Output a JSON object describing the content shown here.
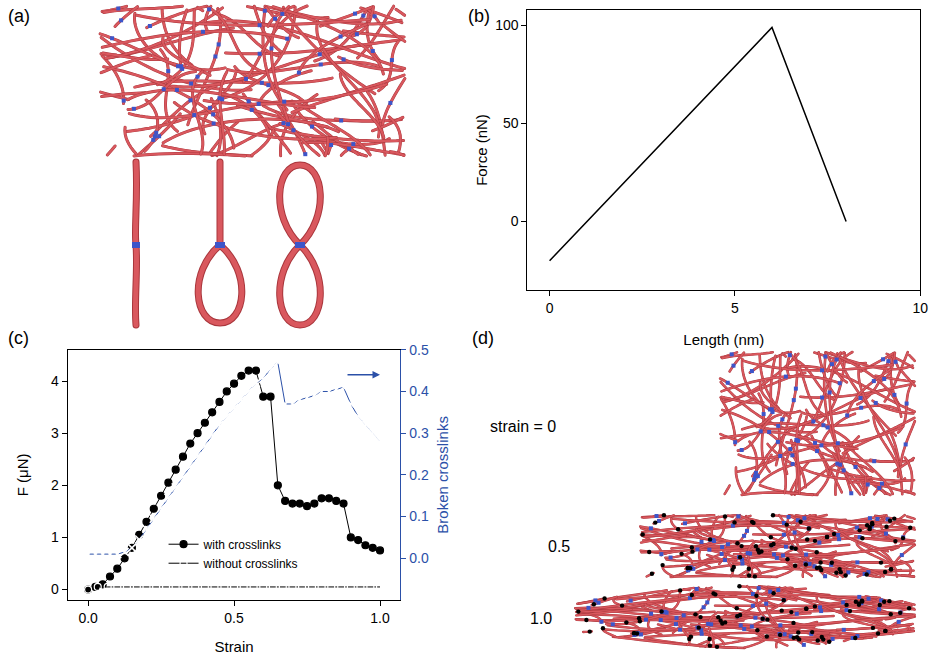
{
  "figure": {
    "panels": [
      {
        "label": "(a)"
      },
      {
        "label": "(b)"
      },
      {
        "label": "(c)"
      },
      {
        "label": "(d)",
        "strain_labels": [
          "strain = 0",
          "0.5",
          "1.0"
        ]
      }
    ]
  },
  "chart_data": [
    {
      "type": "line",
      "x": [
        0,
        6,
        8
      ],
      "values": [
        -20,
        99,
        0
      ],
      "color": "#000000",
      "x_label": "Length (nm)",
      "y_label": "Force (nN)",
      "xlim": [
        -0.6,
        10
      ],
      "xticks": [
        0,
        5,
        10
      ],
      "ylim": [
        -35,
        108
      ],
      "yticks": [
        0,
        50,
        100
      ],
      "grid": false
    },
    {
      "type": "line",
      "x_label": "Strain",
      "y_label": "F (μN)",
      "y2_label": "Broken crosslinks",
      "xlim": [
        -0.07,
        1.07
      ],
      "xticks": [
        {
          "value": 0,
          "label": "0.0"
        },
        0.5,
        {
          "value": 1,
          "label": "1.0"
        }
      ],
      "ylim": [
        -0.2,
        4.6
      ],
      "yticks": [
        0,
        1,
        2,
        3,
        4
      ],
      "y2lim": [
        -0.1,
        0.5
      ],
      "y2ticks": [
        {
          "value": 0,
          "label": "0.0"
        },
        0.1,
        0.2,
        0.3,
        0.4,
        0.5
      ],
      "grid": false,
      "legend": "lower center",
      "series": [
        {
          "name": "with crosslinks",
          "color": "#000000",
          "marker": "circle",
          "line_style": "solid",
          "x": [
            0,
            0.025,
            0.05,
            0.075,
            0.1,
            0.125,
            0.15,
            0.175,
            0.2,
            0.225,
            0.25,
            0.275,
            0.3,
            0.325,
            0.35,
            0.375,
            0.4,
            0.425,
            0.45,
            0.475,
            0.5,
            0.525,
            0.55,
            0.575,
            0.6,
            0.625,
            0.65,
            0.675,
            0.7,
            0.725,
            0.75,
            0.775,
            0.8,
            0.825,
            0.85,
            0.875,
            0.9,
            0.925,
            0.95,
            0.975,
            1
          ],
          "values": [
            0,
            0.05,
            0.1,
            0.25,
            0.4,
            0.6,
            0.8,
            1.05,
            1.3,
            1.55,
            1.8,
            2.05,
            2.3,
            2.55,
            2.8,
            3.0,
            3.2,
            3.4,
            3.6,
            3.8,
            3.95,
            4.1,
            4.2,
            4.2,
            3.7,
            3.7,
            2.0,
            1.7,
            1.65,
            1.65,
            1.6,
            1.65,
            1.75,
            1.75,
            1.7,
            1.65,
            1.0,
            0.95,
            0.85,
            0.8,
            0.75
          ]
        },
        {
          "name": "without crosslinks",
          "color": "#000000",
          "marker": "circle-open",
          "line_style": "solid",
          "x": [
            0,
            0.033,
            0.067,
            0.1,
            0.133,
            0.167,
            0.2,
            0.233,
            0.267,
            0.3,
            0.333,
            0.367,
            0.4,
            0.433,
            0.467,
            0.5,
            0.533,
            0.567,
            0.6,
            0.633,
            0.667,
            0.7,
            0.733,
            0.767,
            0.8,
            0.833,
            0.867,
            0.9,
            0.933,
            0.967,
            1
          ],
          "values": [
            0,
            0.05,
            0.05,
            0.05,
            0.05,
            0.05,
            0.05,
            0.05,
            0.05,
            0.05,
            0.05,
            0.05,
            0.05,
            0.05,
            0.05,
            0.05,
            0.05,
            0.05,
            0.05,
            0.05,
            0.05,
            0.05,
            0.05,
            0.05,
            0.05,
            0.05,
            0.05,
            0.05,
            0.05,
            0.05,
            0.05
          ]
        },
        {
          "name": "Broken crosslinks",
          "color": "#2b50a8",
          "marker": "x",
          "line_style": "solid",
          "axis": "y2",
          "x": [
            0,
            0.025,
            0.05,
            0.075,
            0.1,
            0.125,
            0.15,
            0.175,
            0.2,
            0.225,
            0.25,
            0.275,
            0.3,
            0.325,
            0.35,
            0.375,
            0.4,
            0.425,
            0.45,
            0.475,
            0.5,
            0.525,
            0.55,
            0.575,
            0.6,
            0.625,
            0.65,
            0.675,
            0.7,
            0.725,
            0.75,
            0.775,
            0.8,
            0.825,
            0.85,
            0.875,
            0.9,
            0.925,
            0.95,
            0.975,
            1
          ],
          "values": [
            0.01,
            0.01,
            0.01,
            0.01,
            0.01,
            0.015,
            0.025,
            0.045,
            0.07,
            0.095,
            0.12,
            0.145,
            0.17,
            0.195,
            0.22,
            0.245,
            0.27,
            0.295,
            0.32,
            0.34,
            0.36,
            0.38,
            0.4,
            0.42,
            0.43,
            0.455,
            0.47,
            0.37,
            0.37,
            0.38,
            0.385,
            0.39,
            0.4,
            0.4,
            0.405,
            0.41,
            0.37,
            0.34,
            0.32,
            0.3,
            0.28
          ]
        }
      ]
    }
  ]
}
